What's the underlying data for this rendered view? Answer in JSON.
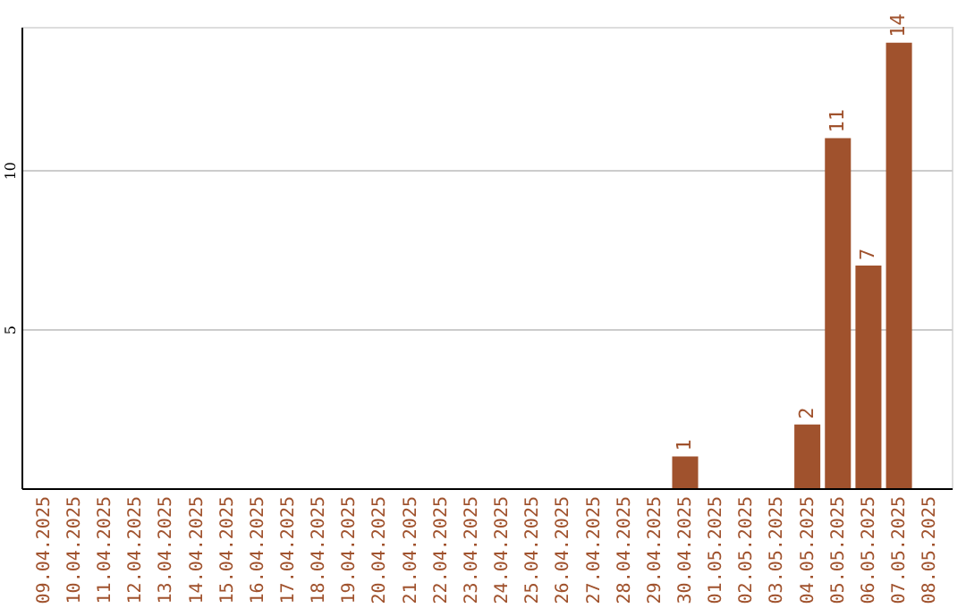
{
  "chart_data": {
    "type": "bar",
    "categories": [
      "09.04.2025",
      "10.04.2025",
      "11.04.2025",
      "12.04.2025",
      "13.04.2025",
      "14.04.2025",
      "15.04.2025",
      "16.04.2025",
      "17.04.2025",
      "18.04.2025",
      "19.04.2025",
      "20.04.2025",
      "21.04.2025",
      "22.04.2025",
      "23.04.2025",
      "24.04.2025",
      "25.04.2025",
      "26.04.2025",
      "27.04.2025",
      "28.04.2025",
      "29.04.2025",
      "30.04.2025",
      "01.05.2025",
      "02.05.2025",
      "03.05.2025",
      "04.05.2025",
      "05.05.2025",
      "06.05.2025",
      "07.05.2025",
      "08.05.2025"
    ],
    "values": [
      0,
      0,
      0,
      0,
      0,
      0,
      0,
      0,
      0,
      0,
      0,
      0,
      0,
      0,
      0,
      0,
      0,
      0,
      0,
      0,
      0,
      1,
      0,
      0,
      0,
      2,
      11,
      7,
      14,
      0
    ],
    "value_labels": [
      null,
      null,
      null,
      null,
      null,
      null,
      null,
      null,
      null,
      null,
      null,
      null,
      null,
      null,
      null,
      null,
      null,
      null,
      null,
      null,
      null,
      "1",
      null,
      null,
      null,
      "2",
      "11",
      "7",
      "14",
      null
    ],
    "color": "#a0522d",
    "ylim": [
      0,
      14.5
    ],
    "yticks": [
      5,
      10
    ],
    "grid": "y"
  }
}
